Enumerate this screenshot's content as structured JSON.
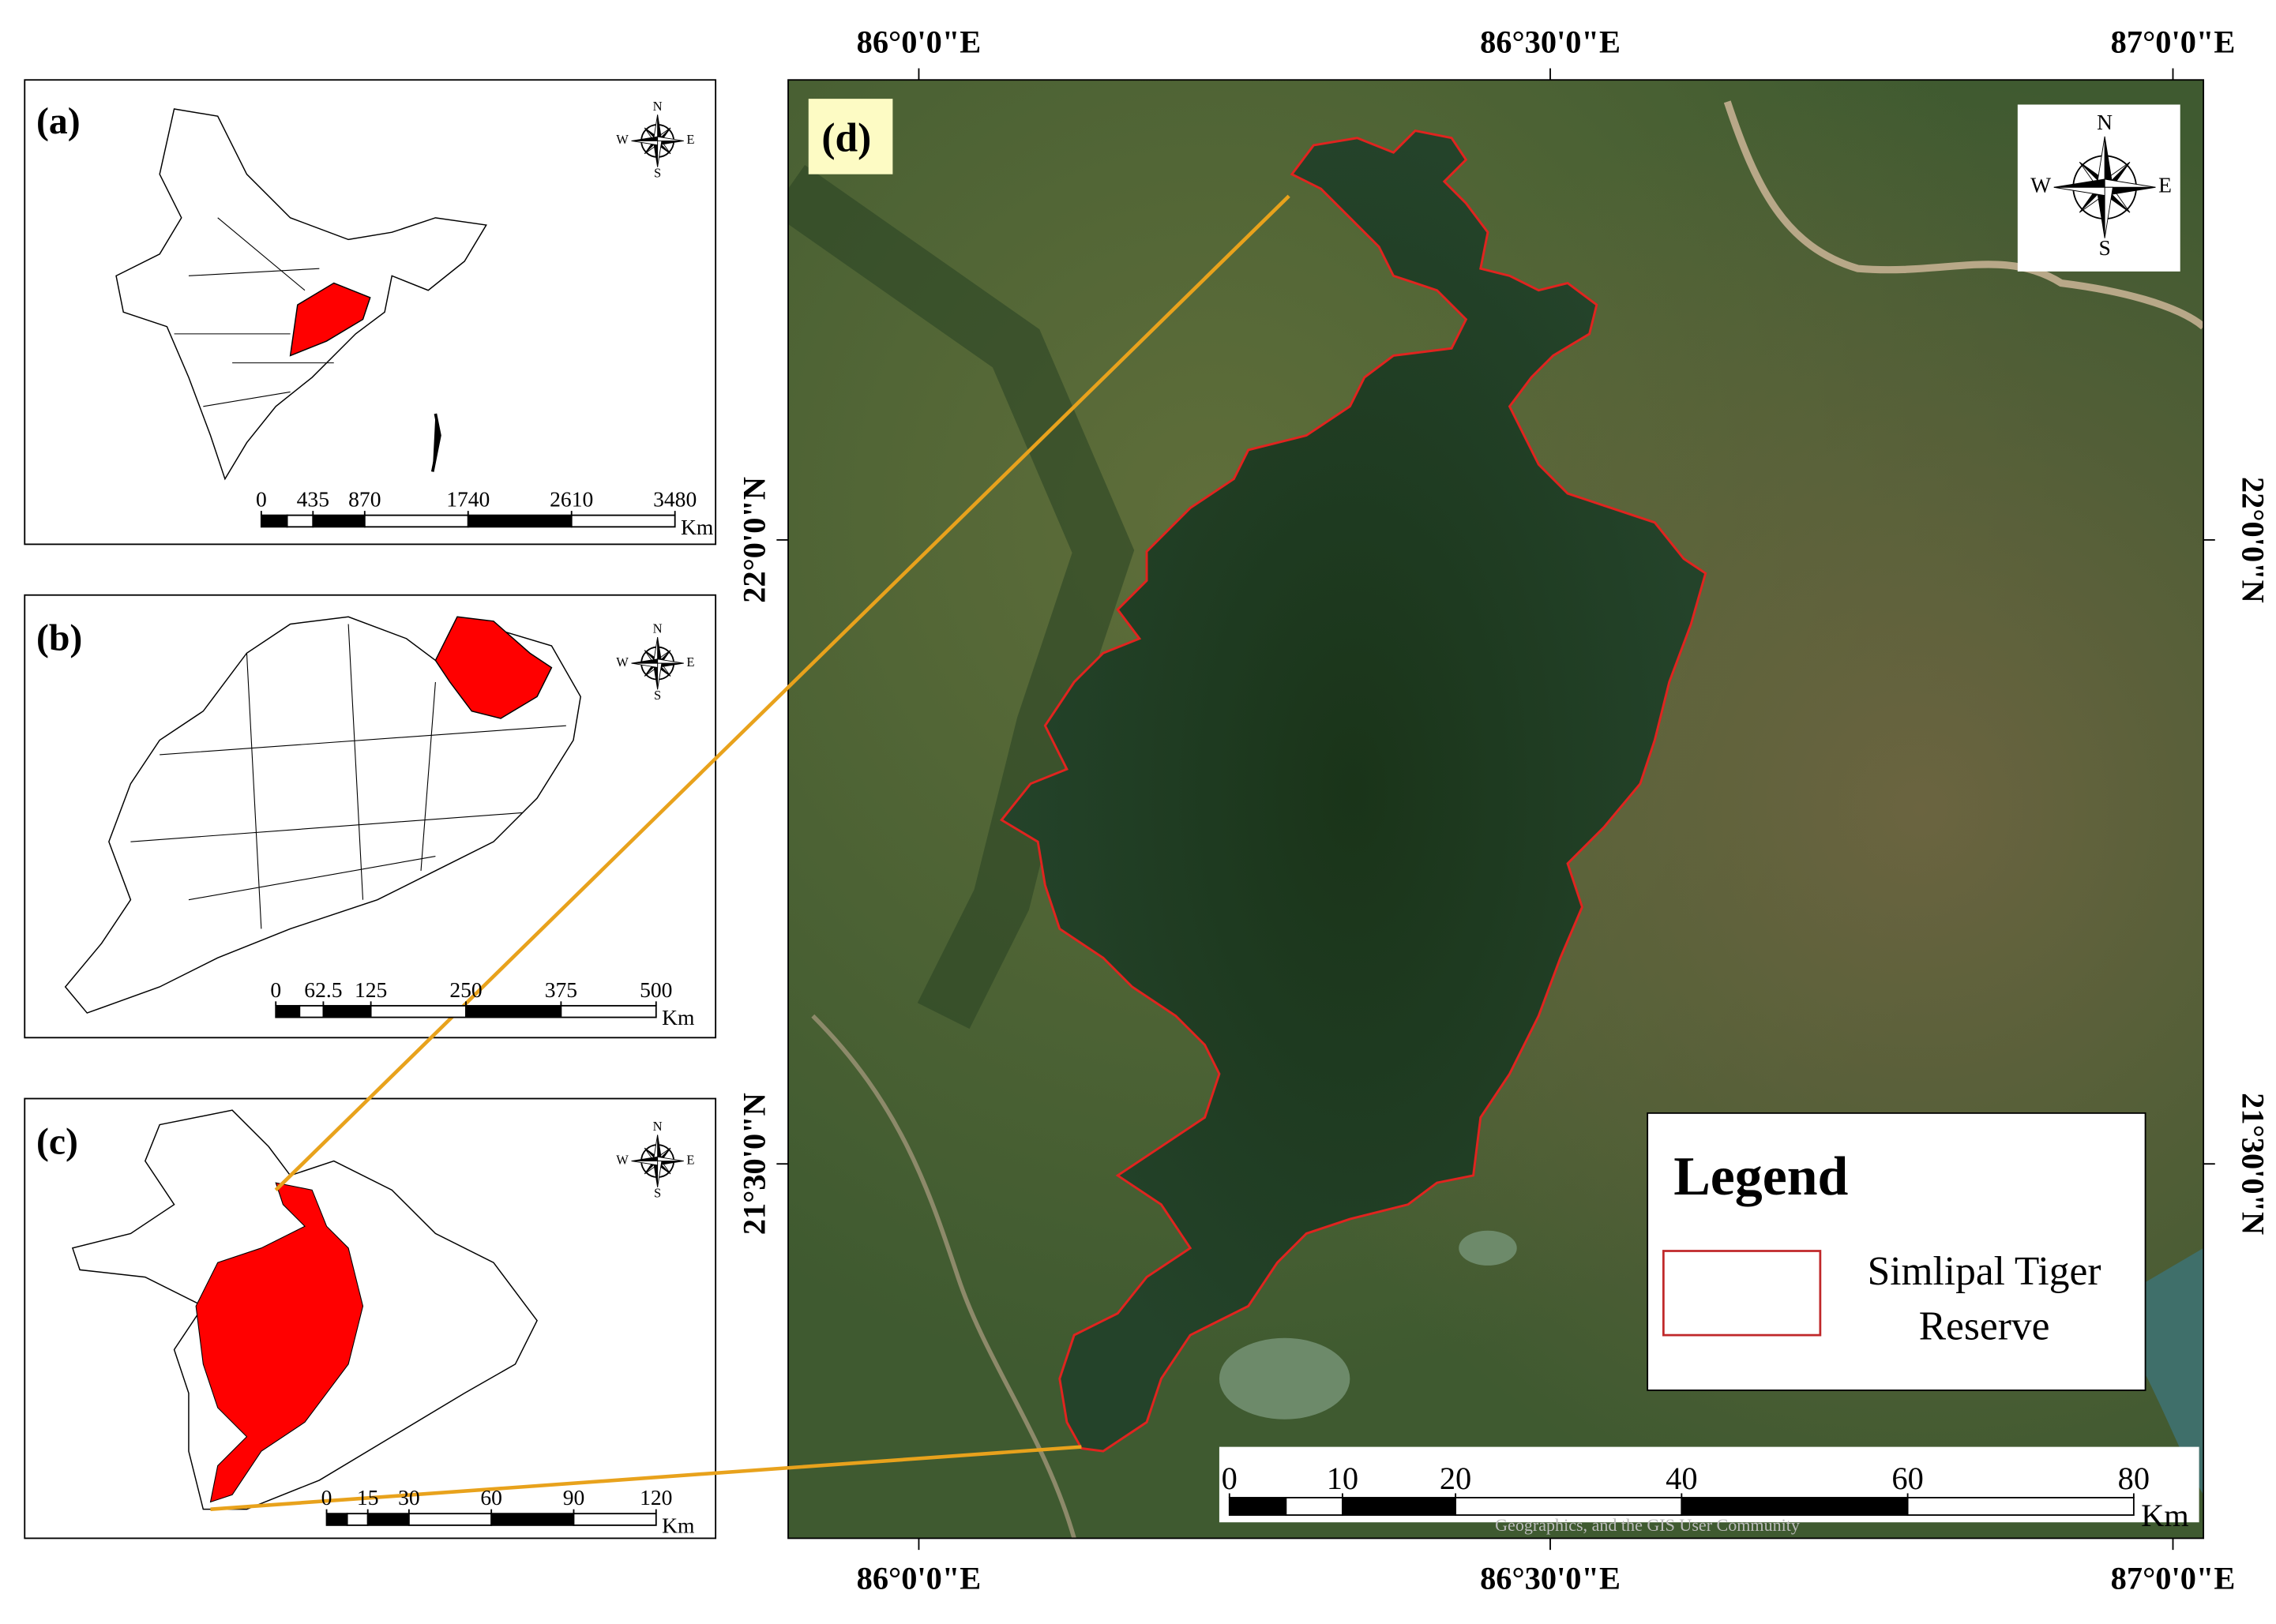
{
  "panels": [
    {
      "label": "(a)",
      "scalebar": {
        "ticks": [
          0,
          435,
          870,
          1740,
          2610,
          3480
        ],
        "unit": "Km"
      },
      "compass": {
        "n": "N",
        "s": "S",
        "e": "E",
        "w": "W"
      }
    },
    {
      "label": "(b)",
      "scalebar": {
        "ticks": [
          0,
          62.5,
          125,
          250,
          375,
          500
        ],
        "unit": "Km"
      },
      "compass": {
        "n": "N",
        "s": "S",
        "e": "E",
        "w": "W"
      }
    },
    {
      "label": "(c)",
      "scalebar": {
        "ticks": [
          0,
          15,
          30,
          60,
          90,
          120
        ],
        "unit": "Km"
      },
      "compass": {
        "n": "N",
        "s": "S",
        "e": "E",
        "w": "W"
      }
    }
  ],
  "main_map": {
    "label": "(d)",
    "longitude_labels": [
      "86°0'0\"E",
      "86°30'0\"E",
      "87°0'0\"E"
    ],
    "latitude_labels": [
      "22°0'0\"N",
      "21°30'0\"N"
    ],
    "compass": {
      "n": "N",
      "s": "S",
      "e": "E",
      "w": "W"
    },
    "scalebar": {
      "ticks": [
        0,
        10,
        20,
        40,
        60,
        80
      ],
      "unit": "Km"
    },
    "legend": {
      "title": "Legend",
      "item_lines": [
        "Simlipal Tiger",
        "Reserve"
      ]
    },
    "attribution": "Geographics, and the GIS User Community"
  }
}
